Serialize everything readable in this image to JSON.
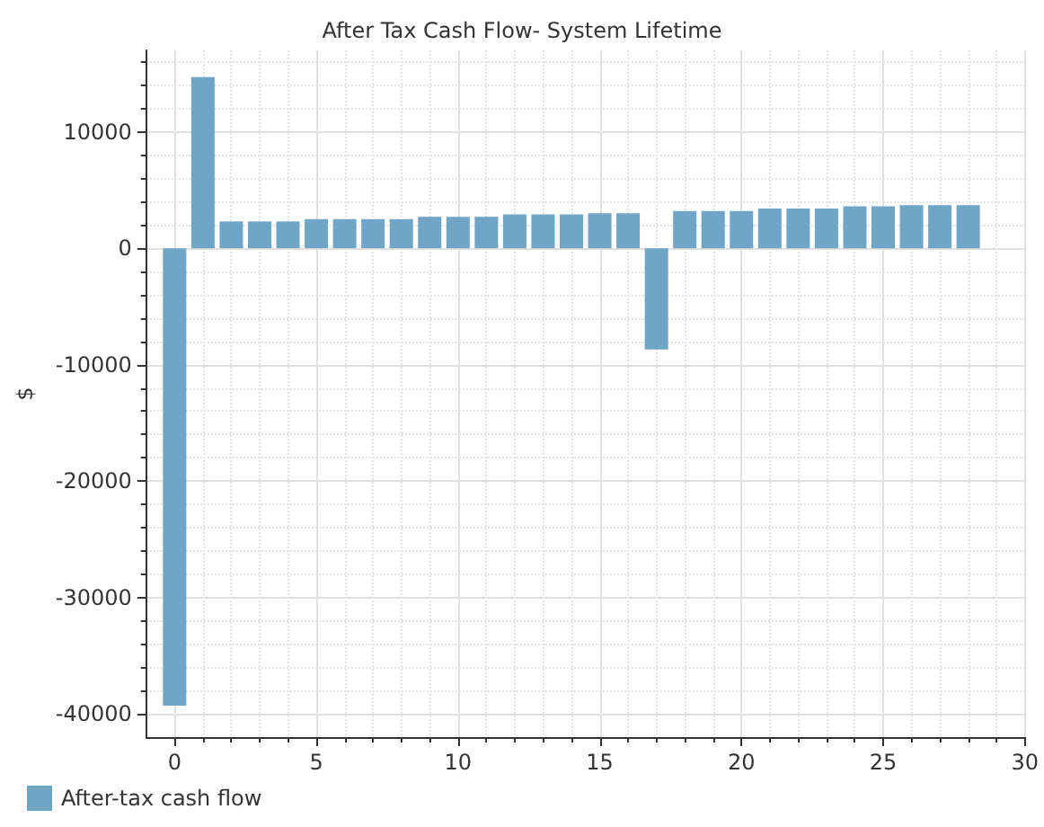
{
  "chart_data": {
    "type": "bar",
    "title": "After Tax Cash Flow- System Lifetime",
    "ylabel": "$",
    "x": [
      0,
      1,
      2,
      3,
      4,
      5,
      6,
      7,
      8,
      9,
      10,
      11,
      12,
      13,
      14,
      15,
      16,
      17,
      18,
      19,
      20,
      21,
      22,
      23,
      24,
      25,
      26,
      27,
      28
    ],
    "series": [
      {
        "name": "After-tax cash flow",
        "color": "#6fa5c7",
        "values": [
          -39300,
          14700,
          2300,
          2300,
          2300,
          2500,
          2500,
          2500,
          2500,
          2700,
          2700,
          2700,
          2900,
          2900,
          2900,
          3000,
          3000,
          -8700,
          3200,
          3200,
          3200,
          3400,
          3400,
          3400,
          3600,
          3600,
          3700,
          3700,
          3700
        ]
      }
    ],
    "xlim": [
      -1,
      30
    ],
    "xticks": [
      0,
      5,
      10,
      15,
      20,
      25,
      30
    ],
    "ylim": [
      -42000,
      17000
    ],
    "yticks": [
      -40000,
      -30000,
      -20000,
      -10000,
      0,
      10000
    ],
    "grid": true,
    "legend": "bottom left"
  }
}
